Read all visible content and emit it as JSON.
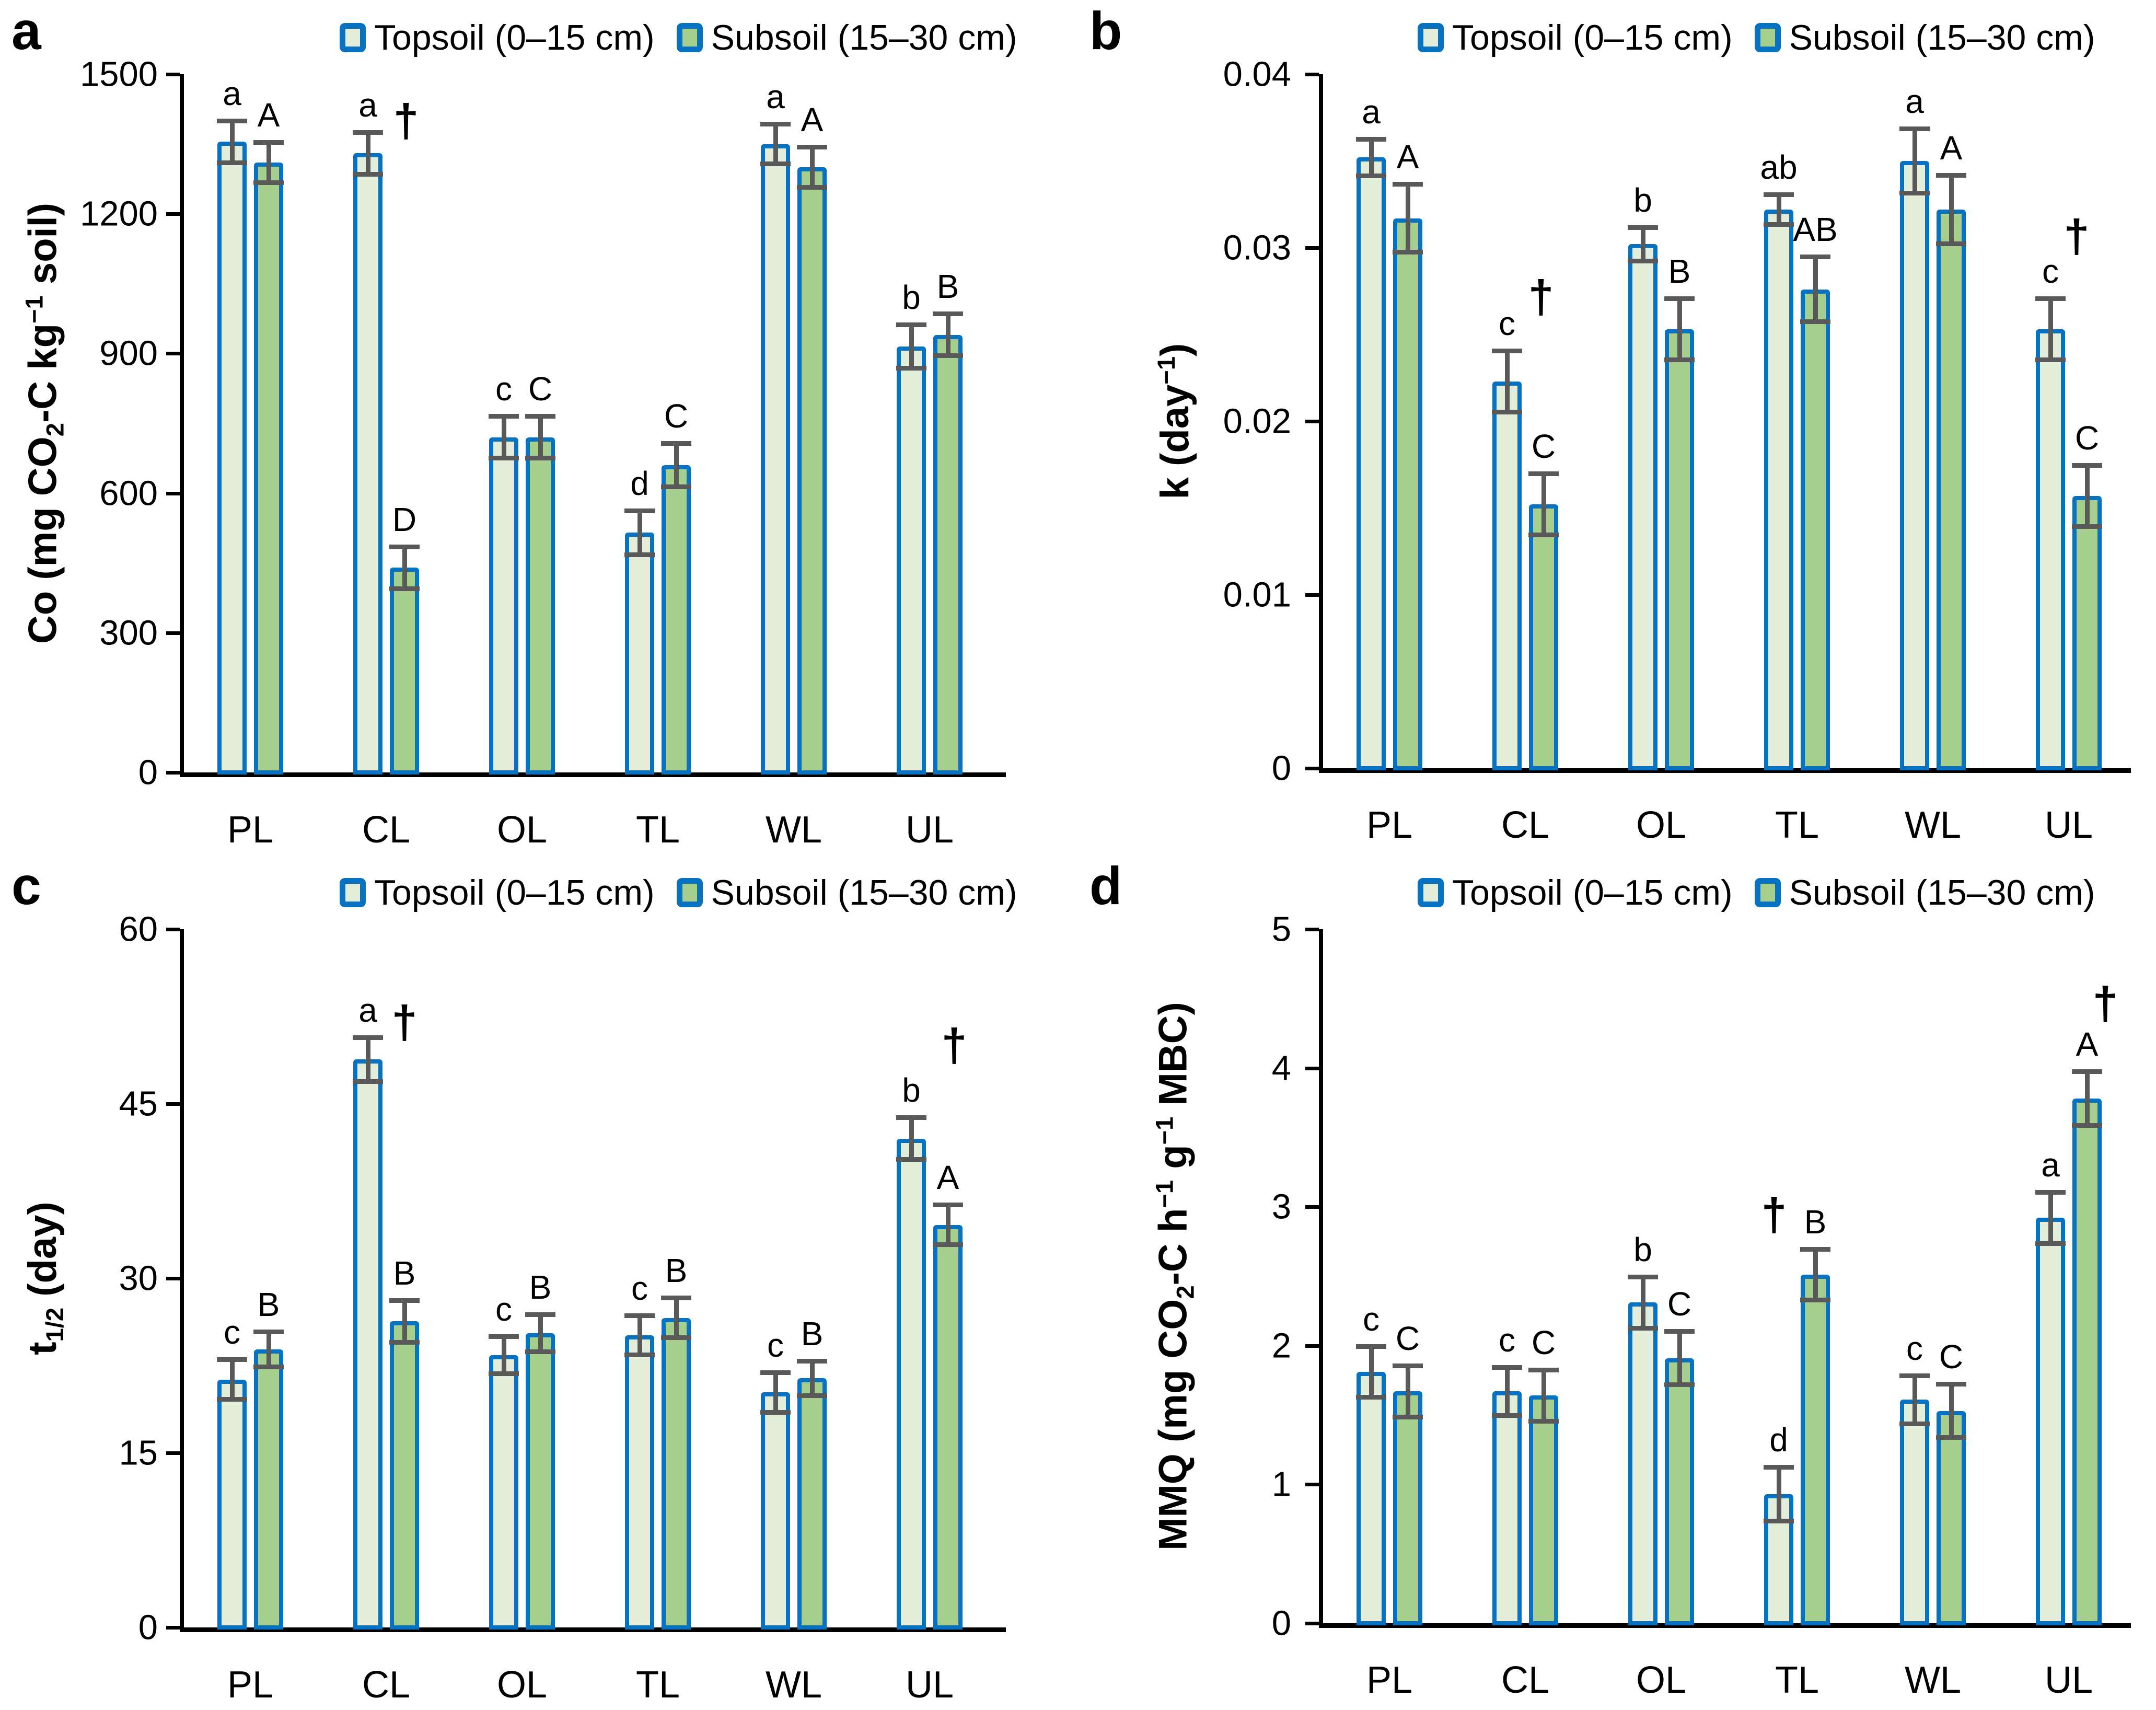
{
  "figure": {
    "dagger_symbol": "†",
    "colors": {
      "bar_border": "#0872C2",
      "error_bar": "#595959",
      "axis": "#000000",
      "topsoil_fill": "#E2EEDA",
      "subsoil_fill": "#A6CE8C"
    },
    "legend": {
      "items": [
        {
          "label": "Topsoil (0–15 cm)",
          "fill": "#E2EEDA"
        },
        {
          "label": "Subsoil (15–30 cm)",
          "fill": "#A6CE8C"
        }
      ]
    }
  },
  "chart_data": [
    {
      "panel": "a",
      "type": "bar",
      "ylabel_parts": [
        {
          "t": "Co (mg CO"
        },
        {
          "t": "2",
          "s": "sub"
        },
        {
          "t": "-C kg"
        },
        {
          "t": "−1",
          "s": "sup"
        },
        {
          "t": " soil)"
        }
      ],
      "ylim": [
        0,
        1500
      ],
      "yticks": [
        0,
        300,
        600,
        900,
        1200,
        1500
      ],
      "ytick_labels": [
        "0",
        "300",
        "600",
        "900",
        "1200",
        "1500"
      ],
      "categories": [
        "PL",
        "CL",
        "OL",
        "TL",
        "WL",
        "UL"
      ],
      "series": [
        {
          "name": "Topsoil (0–15 cm)",
          "values": [
            1355,
            1330,
            720,
            515,
            1350,
            915
          ],
          "errors": [
            50,
            50,
            50,
            52,
            48,
            52
          ],
          "letters": [
            "a",
            "a",
            "c",
            "d",
            "a",
            "b"
          ]
        },
        {
          "name": "Subsoil (15–30 cm)",
          "values": [
            1310,
            440,
            720,
            660,
            1300,
            940
          ],
          "errors": [
            48,
            50,
            50,
            52,
            48,
            50
          ],
          "letters": [
            "A",
            "D",
            "C",
            "C",
            "A",
            "B"
          ]
        }
      ],
      "daggers": [
        {
          "category": "CL",
          "y": 1450,
          "dx": 38
        }
      ]
    },
    {
      "panel": "b",
      "type": "bar",
      "ylabel_parts": [
        {
          "t": "k (day"
        },
        {
          "t": "−1",
          "s": "sup"
        },
        {
          "t": ")"
        }
      ],
      "ylim": [
        0,
        0.04
      ],
      "yticks": [
        0,
        0.01,
        0.02,
        0.03,
        0.04
      ],
      "ytick_labels": [
        "0",
        "0.01",
        "0.02",
        "0.03",
        "0.04"
      ],
      "categories": [
        "PL",
        "CL",
        "OL",
        "TL",
        "WL",
        "UL"
      ],
      "series": [
        {
          "name": "Topsoil (0–15 cm)",
          "values": [
            0.0352,
            0.0223,
            0.0302,
            0.0322,
            0.035,
            0.0253
          ],
          "errors": [
            0.0012,
            0.0019,
            0.0011,
            0.001,
            0.002,
            0.0019
          ],
          "letters": [
            "a",
            "c",
            "b",
            "ab",
            "a",
            "c"
          ]
        },
        {
          "name": "Subsoil (15–30 cm)",
          "values": [
            0.0317,
            0.0152,
            0.0253,
            0.0276,
            0.0322,
            0.0157
          ],
          "errors": [
            0.0021,
            0.0019,
            0.0019,
            0.002,
            0.0021,
            0.0019
          ],
          "letters": [
            "A",
            "C",
            "B",
            "AB",
            "A",
            "C"
          ]
        }
      ],
      "daggers": [
        {
          "category": "CL",
          "y": 0.0285,
          "dx": 30
        },
        {
          "category": "UL",
          "y": 0.032,
          "dx": 15
        }
      ]
    },
    {
      "panel": "c",
      "type": "bar",
      "ylabel_parts": [
        {
          "t": "t"
        },
        {
          "t": "1/2",
          "s": "sub"
        },
        {
          "t": " (day)"
        }
      ],
      "ylim": [
        0,
        60
      ],
      "yticks": [
        0,
        15,
        30,
        45,
        60
      ],
      "ytick_labels": [
        "0",
        "15",
        "30",
        "45",
        "60"
      ],
      "categories": [
        "PL",
        "CL",
        "OL",
        "TL",
        "WL",
        "UL"
      ],
      "series": [
        {
          "name": "Topsoil (0–15 cm)",
          "values": [
            21.3,
            48.8,
            23.4,
            25.1,
            20.2,
            42.0
          ],
          "errors": [
            1.9,
            2.1,
            1.8,
            1.9,
            1.9,
            2.0
          ],
          "letters": [
            "c",
            "a",
            "c",
            "c",
            "c",
            "b"
          ]
        },
        {
          "name": "Subsoil (15–30 cm)",
          "values": [
            23.9,
            26.3,
            25.3,
            26.6,
            21.4,
            34.6
          ],
          "errors": [
            1.7,
            2.0,
            1.8,
            1.9,
            1.7,
            1.9
          ],
          "letters": [
            "B",
            "B",
            "B",
            "B",
            "B",
            "A"
          ]
        }
      ],
      "daggers": [
        {
          "category": "CL",
          "y": 54,
          "dx": 35
        },
        {
          "category": "UL",
          "y": 52,
          "dx": 47
        }
      ]
    },
    {
      "panel": "d",
      "type": "bar",
      "ylabel_parts": [
        {
          "t": "MMQ (mg CO"
        },
        {
          "t": "2",
          "s": "sub"
        },
        {
          "t": "-C h"
        },
        {
          "t": "−1",
          "s": "sup"
        },
        {
          "t": " g"
        },
        {
          "t": "−1",
          "s": "sup"
        },
        {
          "t": " MBC)"
        }
      ],
      "ylim": [
        0,
        5
      ],
      "yticks": [
        0,
        1,
        2,
        3,
        4,
        5
      ],
      "ytick_labels": [
        "0",
        "1",
        "2",
        "3",
        "4",
        "5"
      ],
      "categories": [
        "PL",
        "CL",
        "OL",
        "TL",
        "WL",
        "UL"
      ],
      "series": [
        {
          "name": "Topsoil (0–15 cm)",
          "values": [
            1.81,
            1.67,
            2.31,
            0.93,
            1.61,
            2.92
          ],
          "errors": [
            0.2,
            0.19,
            0.2,
            0.21,
            0.19,
            0.2
          ],
          "letters": [
            "c",
            "c",
            "b",
            "d",
            "c",
            "a"
          ]
        },
        {
          "name": "Subsoil (15–30 cm)",
          "values": [
            1.67,
            1.64,
            1.91,
            2.51,
            1.53,
            3.78
          ],
          "errors": [
            0.2,
            0.2,
            0.21,
            0.2,
            0.21,
            0.21
          ],
          "letters": [
            "C",
            "C",
            "C",
            "B",
            "C",
            "A"
          ]
        }
      ],
      "daggers": [
        {
          "category": "TL",
          "y": 3.11,
          "dx": -44
        },
        {
          "category": "UL",
          "y": 4.63,
          "dx": 70
        }
      ]
    }
  ]
}
